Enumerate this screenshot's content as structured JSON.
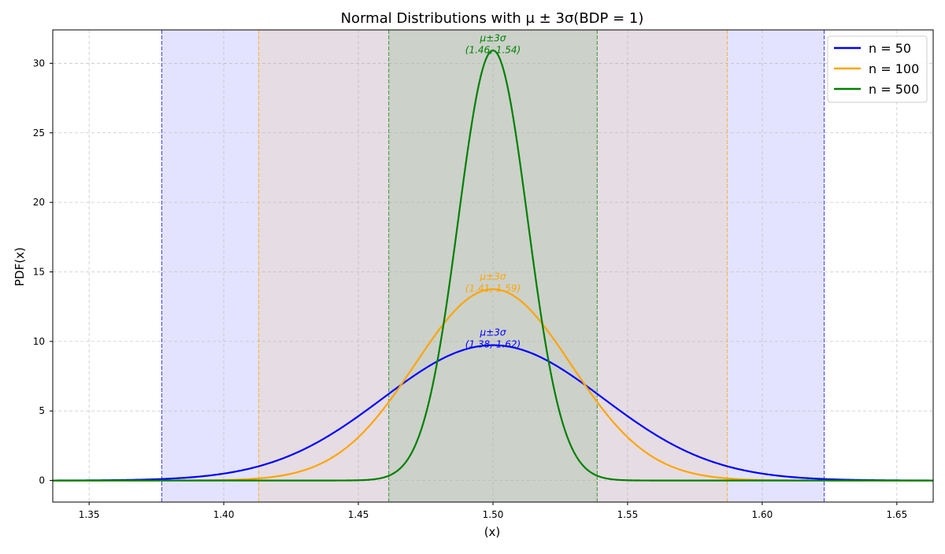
{
  "chart_data": {
    "type": "line",
    "title": "Normal Distributions with μ ± 3σ(BDP = 1)",
    "xlabel": "(x)",
    "ylabel": "PDF(x)",
    "xlim": [
      1.3365,
      1.6635
    ],
    "ylim": [
      -1.55,
      32.4
    ],
    "xticks": [
      1.35,
      1.4,
      1.45,
      1.5,
      1.55,
      1.6,
      1.65
    ],
    "xtick_labels": [
      "1.35",
      "1.40",
      "1.45",
      "1.50",
      "1.55",
      "1.60",
      "1.65"
    ],
    "yticks": [
      0,
      5,
      10,
      15,
      20,
      25,
      30
    ],
    "ytick_labels": [
      "0",
      "5",
      "10",
      "15",
      "20",
      "25",
      "30"
    ],
    "grid": true,
    "legend_position": "top-right",
    "mean": 1.5,
    "series": [
      {
        "name": "n = 50",
        "color": "#0000ff",
        "sigma": 0.041,
        "band": [
          1.377,
          1.623
        ],
        "annotation_line1": "μ±3σ",
        "annotation_line2": "(1.38, 1.62)",
        "annotation_y": 9.73
      },
      {
        "name": "n = 100",
        "color": "#ffa500",
        "sigma": 0.029,
        "band": [
          1.413,
          1.587
        ],
        "annotation_line1": "μ±3σ",
        "annotation_line2": "(1.41, 1.59)",
        "annotation_y": 13.76
      },
      {
        "name": "n = 500",
        "color": "#008000",
        "sigma": 0.0129,
        "band": [
          1.4613,
          1.5387
        ],
        "annotation_line1": "μ±3σ",
        "annotation_line2": "(1.46, 1.54)",
        "annotation_y": 30.9
      }
    ]
  }
}
